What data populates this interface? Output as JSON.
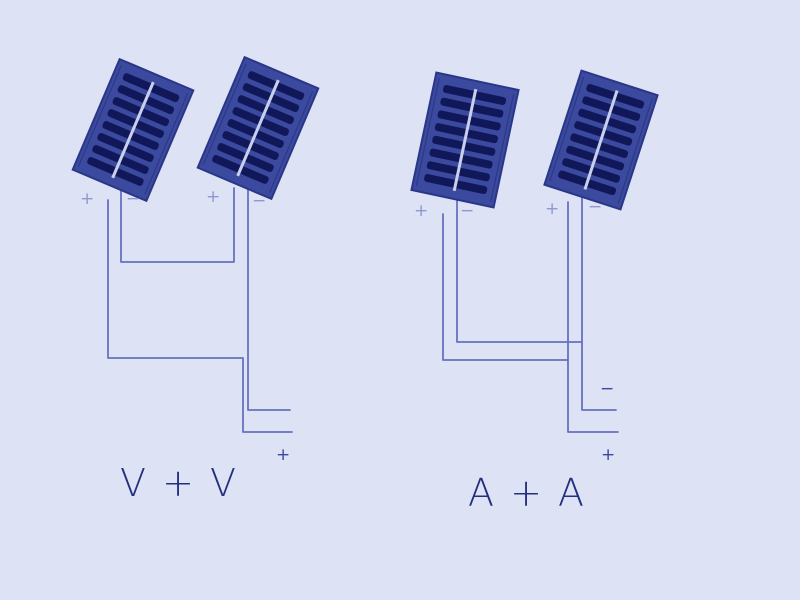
{
  "diagrams": [
    {
      "id": "series",
      "caption": "V + V",
      "panels": [
        {
          "plus": "+",
          "minus": "−"
        },
        {
          "plus": "+",
          "minus": "−"
        }
      ],
      "output": {
        "minus": "−",
        "plus": "+"
      }
    },
    {
      "id": "parallel",
      "caption": "A + A",
      "panels": [
        {
          "plus": "+",
          "minus": "−"
        },
        {
          "plus": "+",
          "minus": "−"
        }
      ],
      "output": {
        "minus": "−",
        "plus": "+"
      }
    }
  ],
  "colors": {
    "paper": "#dde2f5",
    "ink": "#2f3f9a",
    "wire": "#6672c0",
    "panel": "#3b4a9e",
    "cell": "#11185a"
  }
}
